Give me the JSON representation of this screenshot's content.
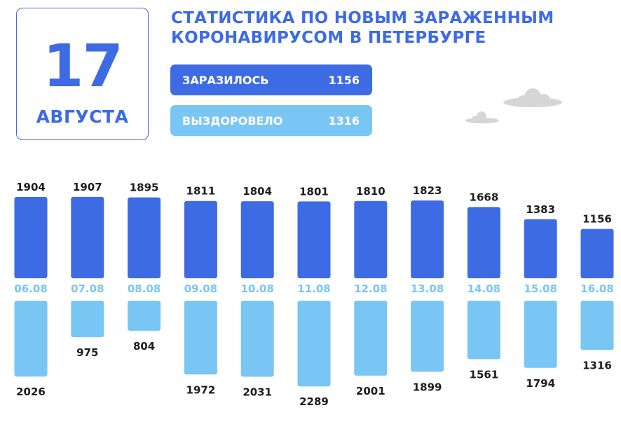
{
  "header": {
    "day": "17",
    "month": "АВГУСТА",
    "title_line1": "СТАТИСТИКА ПО НОВЫМ ЗАРАЖЕННЫМ",
    "title_line2": "КОРОНАВИРУСОМ В ПЕТЕРБУРГЕ"
  },
  "summary": {
    "infected_label": "ЗАРАЗИЛОСЬ",
    "infected_value": "1156",
    "recovered_label": "ВЫЗДОРОВЕЛО",
    "recovered_value": "1316"
  },
  "colors": {
    "primary": "#3d6be4",
    "secondary": "#79c6f4",
    "text": "#1d1d1d",
    "cloud": "#d6d6d6"
  },
  "icons": [
    "cloud-icon"
  ],
  "chart_data": {
    "type": "bar",
    "categories": [
      "06.08",
      "07.08",
      "08.08",
      "09.08",
      "10.08",
      "11.08",
      "12.08",
      "13.08",
      "14.08",
      "15.08",
      "16.08"
    ],
    "series": [
      {
        "name": "ЗАРАЗИЛОСЬ",
        "values": [
          1904,
          1907,
          1895,
          1811,
          1804,
          1801,
          1810,
          1823,
          1668,
          1383,
          1156
        ]
      },
      {
        "name": "ВЫЗДОРОВЕЛО",
        "values": [
          2026,
          975,
          804,
          1972,
          2031,
          2289,
          2001,
          1899,
          1561,
          1794,
          1316
        ]
      }
    ]
  }
}
